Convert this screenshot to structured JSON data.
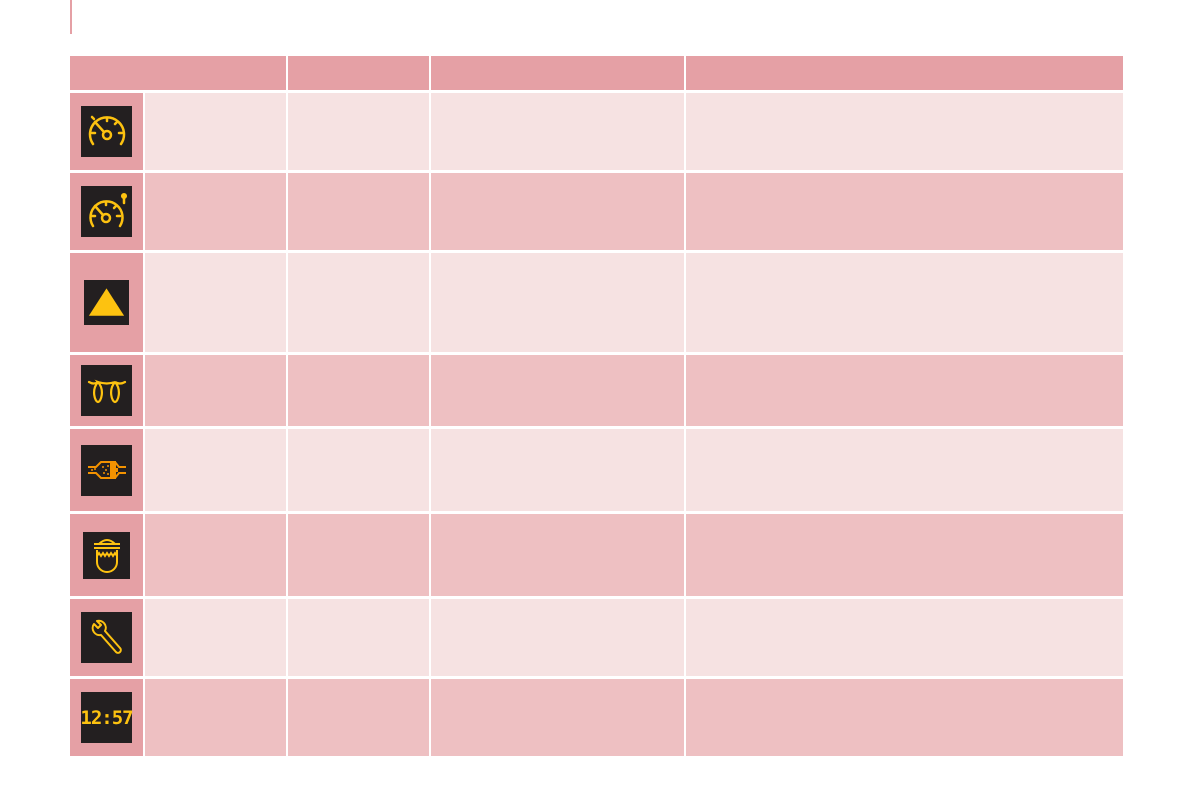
{
  "colors": {
    "header": "#e5a0a5",
    "row_light": "#f6e2e2",
    "row_dark": "#eec0c2",
    "icon_bg": "#231f20",
    "amber": "#fdc210",
    "orange": "#f39200"
  },
  "rows": [
    {
      "icon": "speed-limiter-icon"
    },
    {
      "icon": "cruise-control-icon"
    },
    {
      "icon": "warning-triangle-icon"
    },
    {
      "icon": "glow-plug-icon"
    },
    {
      "icon": "particle-filter-icon"
    },
    {
      "icon": "water-in-diesel-icon"
    },
    {
      "icon": "service-wrench-icon"
    },
    {
      "icon": "service-display-icon",
      "display_text": "12:57"
    }
  ]
}
